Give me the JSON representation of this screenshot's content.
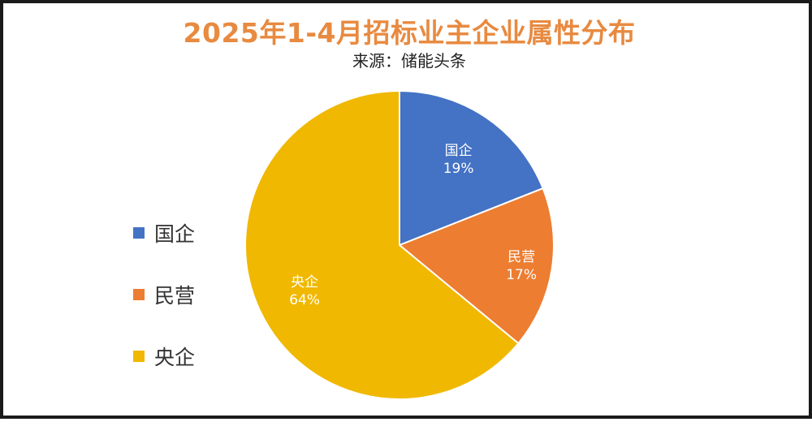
{
  "chart_data": {
    "type": "pie",
    "title": "2025年1-4月招标业主企业属性分布",
    "subtitle": "来源：储能头条",
    "categories": [
      "国企",
      "民营",
      "央企"
    ],
    "values": [
      19,
      17,
      64
    ],
    "labels": [
      "19%",
      "17%",
      "64%"
    ],
    "colors": [
      "#4472c4",
      "#ed7d31",
      "#f0b800"
    ],
    "legend_position": "left"
  }
}
